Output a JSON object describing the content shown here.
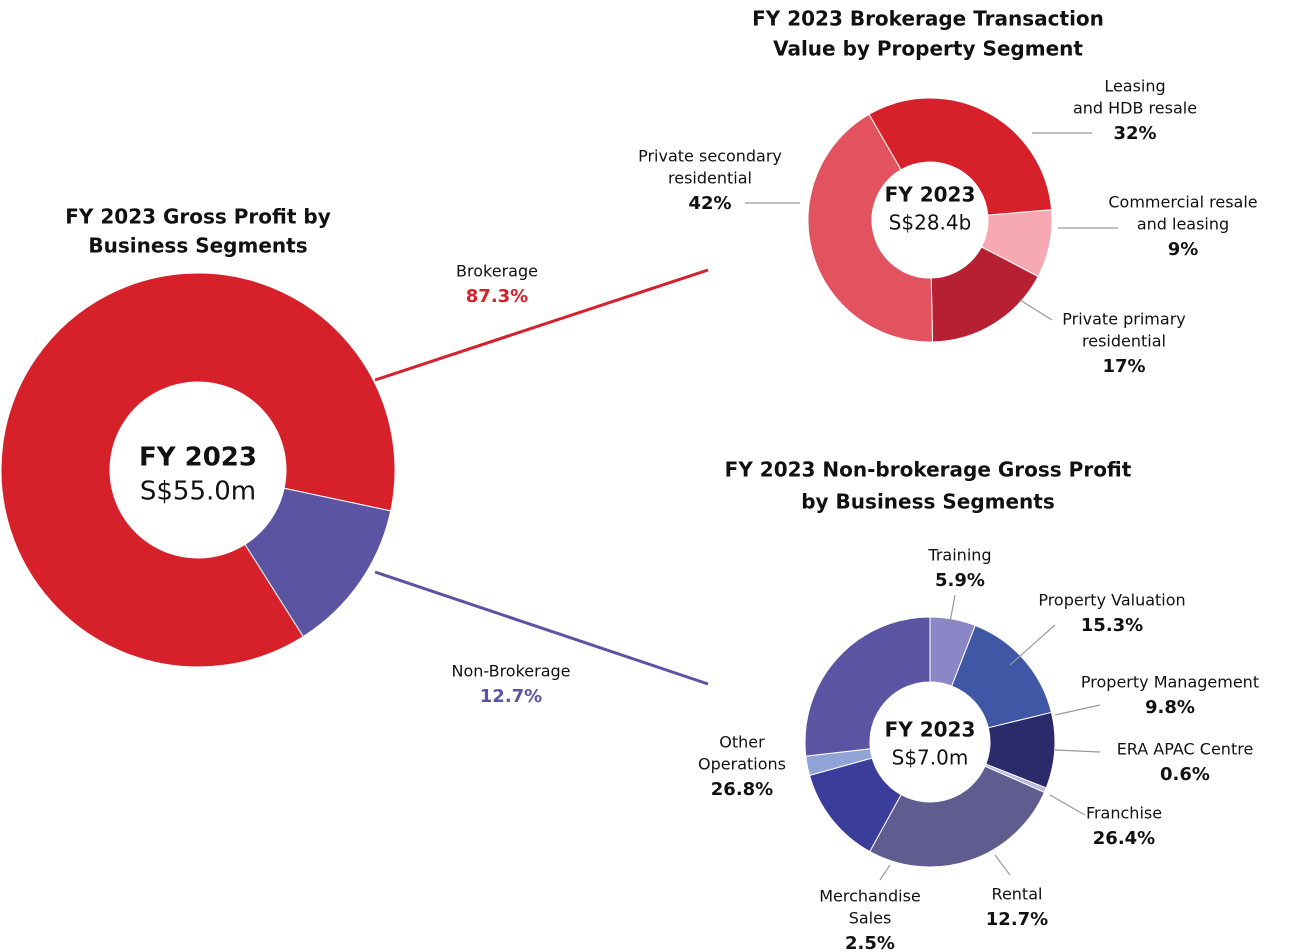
{
  "chart_data": [
    {
      "type": "pie",
      "title": [
        "FY 2023 Gross Profit by",
        "Business Segments"
      ],
      "center_title": "FY 2023",
      "center_value": "S$55.0m",
      "categories": [
        [
          "Brokerage"
        ],
        [
          "Non-Brokerage"
        ]
      ],
      "values": [
        87.3,
        12.7
      ],
      "value_labels": [
        "87.3%",
        "12.7%"
      ],
      "colors": [
        "#d6202a",
        "#5b54a3"
      ]
    },
    {
      "type": "pie",
      "title": [
        "FY 2023 Brokerage Transaction",
        "Value by Property Segment"
      ],
      "center_title": "FY 2023",
      "center_value": "S$28.4b",
      "categories": [
        [
          "Leasing",
          "and HDB resale"
        ],
        [
          "Commercial resale",
          "and leasing"
        ],
        [
          "Private primary",
          "residential"
        ],
        [
          "Private secondary",
          "residential"
        ]
      ],
      "values": [
        32,
        9,
        17,
        42
      ],
      "value_labels": [
        "32%",
        "9%",
        "17%",
        "42%"
      ],
      "colors": [
        "#d6202a",
        "#f6a8b3",
        "#b71f33",
        "#e3535f"
      ]
    },
    {
      "type": "pie",
      "title": [
        "FY 2023 Non-brokerage Gross Profit",
        "by Business Segments"
      ],
      "center_title": "FY 2023",
      "center_value": "S$7.0m",
      "categories": [
        [
          "Training"
        ],
        [
          "Property Valuation"
        ],
        [
          "Property Management"
        ],
        [
          "ERA APAC Centre"
        ],
        [
          "Franchise"
        ],
        [
          "Rental"
        ],
        [
          "Merchandise",
          "Sales"
        ],
        [
          "Other",
          "Operations"
        ]
      ],
      "values": [
        5.9,
        15.3,
        9.8,
        0.6,
        26.4,
        12.7,
        2.5,
        26.8
      ],
      "value_labels": [
        "5.9%",
        "15.3%",
        "9.8%",
        "0.6%",
        "26.4%",
        "12.7%",
        "2.5%",
        "26.8%"
      ],
      "colors": [
        "#8b86c6",
        "#4057a5",
        "#2b2a6b",
        "#b9b8e0",
        "#5f5c90",
        "#3b3d9a",
        "#8fa3d6",
        "#5b54a3"
      ]
    }
  ]
}
